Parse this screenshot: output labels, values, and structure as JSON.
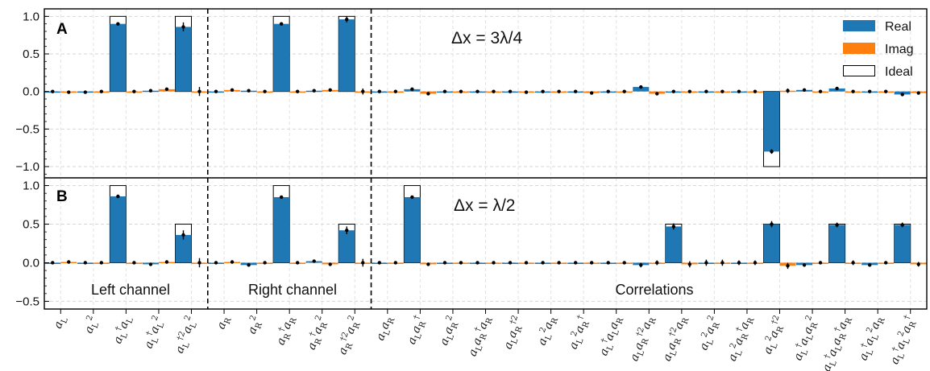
{
  "chart_data": {
    "type": "bar",
    "legend": {
      "placement": "top-right",
      "entries": [
        {
          "name": "Real",
          "color": "#1f77b4"
        },
        {
          "name": "Imag",
          "color": "#ff7f0e"
        },
        {
          "name": "Ideal",
          "color": "#ffffff"
        }
      ]
    },
    "categories": [
      "aL",
      "aL^2",
      "aL†aL",
      "aL†aL^2",
      "aL†2aL^2",
      "aR",
      "aR^2",
      "aR†aR",
      "aR†aR^2",
      "aR†2aR^2",
      "aLaR",
      "aLaR†",
      "aLaR^2",
      "aLaR†aR",
      "aLaR†2",
      "aL^2aR",
      "aL^2aR†",
      "aL†aLaR",
      "aLaR†2aR",
      "aLaR†2aR (2)",
      "aL^2aR^2",
      "aL^2aR†aR",
      "aL^2aR†2",
      "aL†aLaR^2",
      "aL†aLaR†aR",
      "aL†aL^2aR",
      "aL†aL^2aR†"
    ],
    "grid": true,
    "panels": [
      {
        "label": "A",
        "annotation": "Δx = 3λ/4",
        "ylim": [
          -1.15,
          1.1
        ],
        "yticks": [
          "−1.0",
          "−0.5",
          "0.0",
          "0.5",
          "1.0"
        ],
        "ytick_values": [
          -1.0,
          -0.5,
          0.0,
          0.5,
          1.0
        ],
        "real": [
          0.0,
          -0.01,
          0.9,
          0.01,
          0.86,
          0.0,
          0.01,
          0.9,
          0.01,
          0.96,
          0.0,
          0.03,
          0.0,
          0.0,
          0.0,
          0.0,
          0.0,
          0.0,
          0.06,
          0.0,
          0.0,
          0.0,
          -0.8,
          0.02,
          0.04,
          0.0,
          -0.04
        ],
        "imag": [
          -0.01,
          0.0,
          0.0,
          0.03,
          0.0,
          0.02,
          0.0,
          0.0,
          0.02,
          0.0,
          0.0,
          -0.03,
          0.0,
          0.0,
          -0.01,
          0.0,
          -0.02,
          0.0,
          -0.03,
          0.0,
          0.0,
          0.0,
          0.01,
          0.0,
          0.0,
          0.0,
          -0.02
        ],
        "ideal": [
          0,
          0,
          1,
          0,
          1,
          0,
          0,
          1,
          0,
          1,
          0,
          0,
          0,
          0,
          0,
          0,
          0,
          0,
          0,
          0,
          0,
          0,
          -1,
          0,
          0,
          0,
          0
        ],
        "err": [
          0.01,
          0.01,
          0.02,
          0.01,
          0.06,
          0.01,
          0.01,
          0.02,
          0.01,
          0.04,
          0.01,
          0.01,
          0.01,
          0.01,
          0.01,
          0.01,
          0.01,
          0.01,
          0.01,
          0.01,
          0.01,
          0.01,
          0.03,
          0.01,
          0.02,
          0.01,
          0.02
        ]
      },
      {
        "label": "B",
        "annotation": "Δx = λ/2",
        "ylim": [
          -0.6,
          1.1
        ],
        "yticks": [
          "−0.5",
          "0.0",
          "0.5",
          "1.0"
        ],
        "ytick_values": [
          -0.5,
          0.0,
          0.5,
          1.0
        ],
        "real": [
          0.0,
          0.0,
          0.86,
          -0.02,
          0.36,
          0.0,
          -0.03,
          0.85,
          0.02,
          0.42,
          0.0,
          0.85,
          0.0,
          0.0,
          0.0,
          0.0,
          0.0,
          0.0,
          -0.03,
          0.47,
          0.0,
          0.0,
          0.5,
          -0.03,
          0.49,
          -0.03,
          0.49
        ],
        "imag": [
          0.01,
          0.0,
          0.0,
          0.01,
          0.0,
          0.01,
          0.0,
          0.0,
          -0.02,
          0.0,
          0.0,
          -0.02,
          0.0,
          0.0,
          0.0,
          0.0,
          0.0,
          0.0,
          0.0,
          -0.02,
          0.0,
          0.0,
          -0.04,
          0.0,
          0.0,
          0.0,
          -0.02
        ],
        "ideal": [
          0,
          0,
          1,
          0,
          0.5,
          0,
          0,
          1,
          0,
          0.5,
          0,
          1,
          0,
          0,
          0,
          0,
          0,
          0,
          0,
          0.5,
          0,
          0,
          0.5,
          0,
          0.5,
          0,
          0.5
        ],
        "err": [
          0.01,
          0.01,
          0.02,
          0.01,
          0.06,
          0.01,
          0.01,
          0.02,
          0.01,
          0.05,
          0.01,
          0.02,
          0.01,
          0.01,
          0.01,
          0.01,
          0.01,
          0.01,
          0.03,
          0.04,
          0.04,
          0.03,
          0.04,
          0.01,
          0.03,
          0.02,
          0.03
        ]
      }
    ],
    "regions": [
      "Left channel",
      "Right channel",
      "Correlations"
    ]
  },
  "panel_a": {
    "label": "A",
    "annotation": "Δx = 3λ/4"
  },
  "panel_b": {
    "label": "B",
    "annotation": "Δx = λ/2"
  },
  "regions": {
    "left": "Left channel",
    "right": "Right channel",
    "corr": "Correlations"
  },
  "legend": {
    "real": "Real",
    "imag": "Imag",
    "ideal": "Ideal"
  }
}
